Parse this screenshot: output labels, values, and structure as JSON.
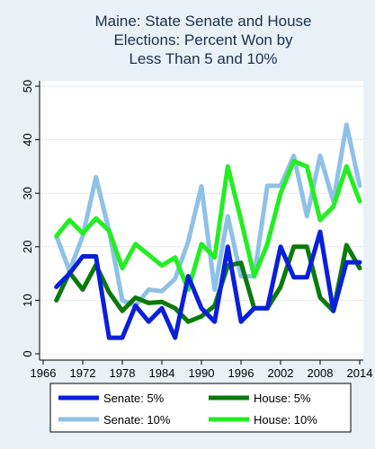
{
  "chart_data": {
    "type": "line",
    "title": [
      "Maine: State Senate and House",
      "Elections: Percent Won by",
      "Less Than 5 and 10%"
    ],
    "xlabel": "",
    "ylabel": "",
    "xlim": [
      1966,
      2014
    ],
    "ylim": [
      0,
      50
    ],
    "x_ticks": [
      1966,
      1972,
      1978,
      1984,
      1990,
      1996,
      2002,
      2008,
      2014
    ],
    "y_ticks": [
      0,
      10,
      20,
      30,
      40,
      50
    ],
    "grid": true,
    "legend_position": "bottom",
    "x": [
      1968,
      1970,
      1972,
      1974,
      1976,
      1978,
      1980,
      1982,
      1984,
      1986,
      1988,
      1990,
      1992,
      1994,
      1996,
      1998,
      2000,
      2002,
      2004,
      2006,
      2008,
      2010,
      2012,
      2014
    ],
    "series": [
      {
        "name": "Senate: 5%",
        "color": "#0a1fdc",
        "values": [
          12.5,
          15,
          18.2,
          18.2,
          3,
          3,
          9,
          6,
          8.5,
          3,
          14.5,
          8.5,
          6,
          20,
          6,
          8.5,
          8.5,
          20,
          14.3,
          14.3,
          22.8,
          8,
          17.1,
          17.1
        ]
      },
      {
        "name": "House: 5%",
        "color": "#0b7a0b",
        "values": [
          10,
          15.2,
          12,
          16.6,
          11.5,
          8,
          10.5,
          9.5,
          9.7,
          8.5,
          6,
          7,
          9,
          16.5,
          17,
          8.5,
          8.5,
          12.5,
          20,
          20,
          10.5,
          8,
          20.3,
          16
        ]
      },
      {
        "name": "Senate: 10%",
        "color": "#8ec1e8",
        "values": [
          22,
          15.5,
          22,
          33,
          23,
          10,
          9,
          12,
          11.7,
          14,
          21,
          31.3,
          12,
          25.7,
          14.5,
          14.5,
          31.4,
          31.4,
          37,
          25.7,
          37,
          28.5,
          42.8,
          31.4
        ]
      },
      {
        "name": "House: 10%",
        "color": "#22ee22",
        "values": [
          22,
          25,
          22.5,
          25.3,
          23,
          16,
          20.5,
          18.5,
          16.5,
          18,
          12,
          20.5,
          18,
          35,
          25,
          14.5,
          20.5,
          30,
          36,
          35,
          25,
          27.5,
          35,
          28.5
        ]
      }
    ]
  }
}
